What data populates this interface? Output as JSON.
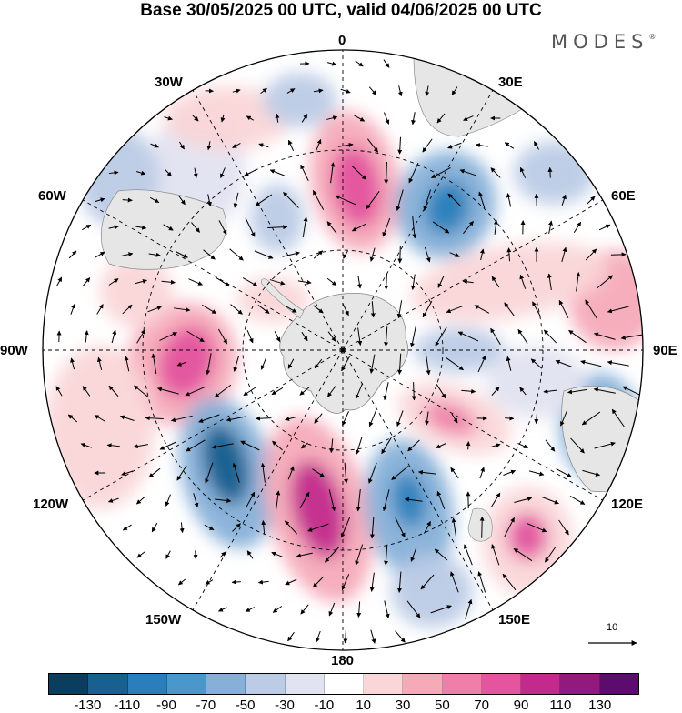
{
  "title": "Base 30/05/2025 00 UTC, valid 04/06/2025 00 UTC",
  "logo": "MODES",
  "logo_mark": "®",
  "meridian_labels": {
    "m0": "0",
    "m30e": "30E",
    "m60e": "60E",
    "m90e": "90E",
    "m120e": "120E",
    "m150e": "150E",
    "m180": "180",
    "m150w": "150W",
    "m120w": "120W",
    "m90w": "90W",
    "m60w": "60W",
    "m30w": "30W"
  },
  "reference_vector_label": "10",
  "colorbar": {
    "colors": [
      "#0b3d5e",
      "#17608f",
      "#2a7fba",
      "#4a98cb",
      "#86b0d8",
      "#bccbe6",
      "#e2e3f0",
      "#ffffff",
      "#fad6d8",
      "#f5aab8",
      "#ef7fa9",
      "#e4549f",
      "#c32a8e",
      "#921a7e",
      "#5c0c6c"
    ],
    "tick_labels": [
      "-130",
      "-110",
      "-90",
      "-70",
      "-50",
      "-30",
      "-10",
      "10",
      "30",
      "50",
      "70",
      "90",
      "110",
      "130"
    ]
  }
}
